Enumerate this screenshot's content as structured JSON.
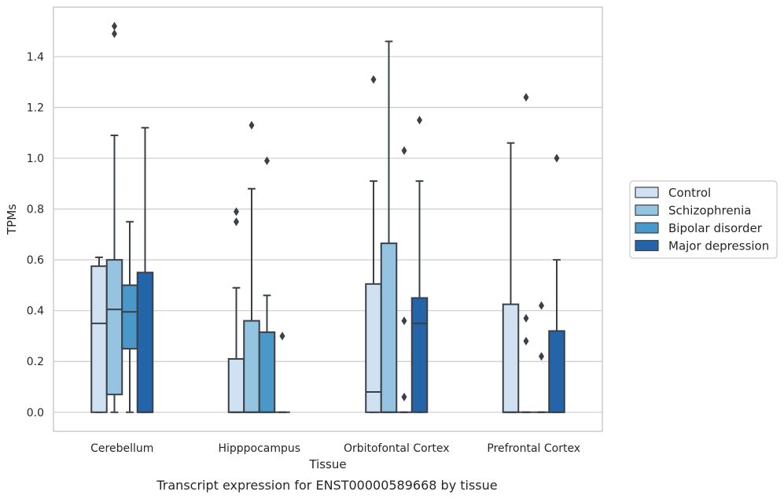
{
  "chart_data": {
    "type": "box",
    "xlabel": "Tissue",
    "ylabel": "TPMs",
    "caption": "Transcript expression for ENST00000589668 by tissue",
    "categories": [
      "Cerebellum",
      "Hipppocampus",
      "Orbitofontal Cortex",
      "Prefrontal Cortex"
    ],
    "ylim": [
      -0.075,
      1.595
    ],
    "yticks": [
      0.0,
      0.2,
      0.4,
      0.6,
      0.8,
      1.0,
      1.2,
      1.4
    ],
    "ytick_labels": [
      "0.0",
      "0.2",
      "0.4",
      "0.6",
      "0.8",
      "1.0",
      "1.2",
      "1.4"
    ],
    "grid": "horizontal",
    "legend_position": "right",
    "series": [
      {
        "name": "Control",
        "color": "#d0e1f2",
        "boxes": [
          {
            "q1": 0.0,
            "median": 0.35,
            "q3": 0.575,
            "whislo": 0.0,
            "whishi": 0.61,
            "fliers": []
          },
          {
            "q1": 0.0,
            "median": 0.0,
            "q3": 0.21,
            "whislo": 0.0,
            "whishi": 0.49,
            "fliers": [
              0.79,
              0.75
            ]
          },
          {
            "q1": 0.0,
            "median": 0.08,
            "q3": 0.505,
            "whislo": 0.0,
            "whishi": 0.91,
            "fliers": [
              1.31
            ]
          },
          {
            "q1": 0.0,
            "median": 0.0,
            "q3": 0.425,
            "whislo": 0.0,
            "whishi": 1.06,
            "fliers": []
          }
        ]
      },
      {
        "name": "Schizophrenia",
        "color": "#94c4df",
        "boxes": [
          {
            "q1": 0.07,
            "median": 0.405,
            "q3": 0.6,
            "whislo": 0.0,
            "whishi": 1.09,
            "fliers": [
              1.52,
              1.49
            ]
          },
          {
            "q1": 0.0,
            "median": 0.0,
            "q3": 0.36,
            "whislo": 0.0,
            "whishi": 0.88,
            "fliers": [
              1.13
            ]
          },
          {
            "q1": 0.0,
            "median": 0.0,
            "q3": 0.665,
            "whislo": 0.0,
            "whishi": 1.46,
            "fliers": []
          },
          {
            "q1": 0.0,
            "median": 0.0,
            "q3": 0.0,
            "whislo": 0.0,
            "whishi": 0.0,
            "fliers": [
              1.24,
              0.37,
              0.28
            ]
          }
        ]
      },
      {
        "name": "Bipolar disorder",
        "color": "#4a98c9",
        "boxes": [
          {
            "q1": 0.25,
            "median": 0.395,
            "q3": 0.5,
            "whislo": 0.0,
            "whishi": 0.75,
            "fliers": []
          },
          {
            "q1": 0.0,
            "median": 0.0,
            "q3": 0.315,
            "whislo": 0.0,
            "whishi": 0.46,
            "fliers": [
              0.99
            ]
          },
          {
            "q1": 0.0,
            "median": 0.0,
            "q3": 0.0,
            "whislo": 0.0,
            "whishi": 0.0,
            "fliers": [
              1.03,
              0.36,
              0.06
            ]
          },
          {
            "q1": 0.0,
            "median": 0.0,
            "q3": 0.0,
            "whislo": 0.0,
            "whishi": 0.0,
            "fliers": [
              0.42,
              0.22
            ]
          }
        ]
      },
      {
        "name": "Major depression",
        "color": "#2464a9",
        "boxes": [
          {
            "q1": 0.0,
            "median": 0.0,
            "q3": 0.55,
            "whislo": 0.0,
            "whishi": 1.12,
            "fliers": []
          },
          {
            "q1": 0.0,
            "median": 0.0,
            "q3": 0.0,
            "whislo": 0.0,
            "whishi": 0.0,
            "fliers": [
              0.3
            ]
          },
          {
            "q1": 0.0,
            "median": 0.35,
            "q3": 0.45,
            "whislo": 0.0,
            "whishi": 0.91,
            "fliers": [
              1.15
            ]
          },
          {
            "q1": 0.0,
            "median": 0.0,
            "q3": 0.32,
            "whislo": 0.0,
            "whishi": 0.6,
            "fliers": [
              1.0
            ]
          }
        ]
      }
    ]
  }
}
